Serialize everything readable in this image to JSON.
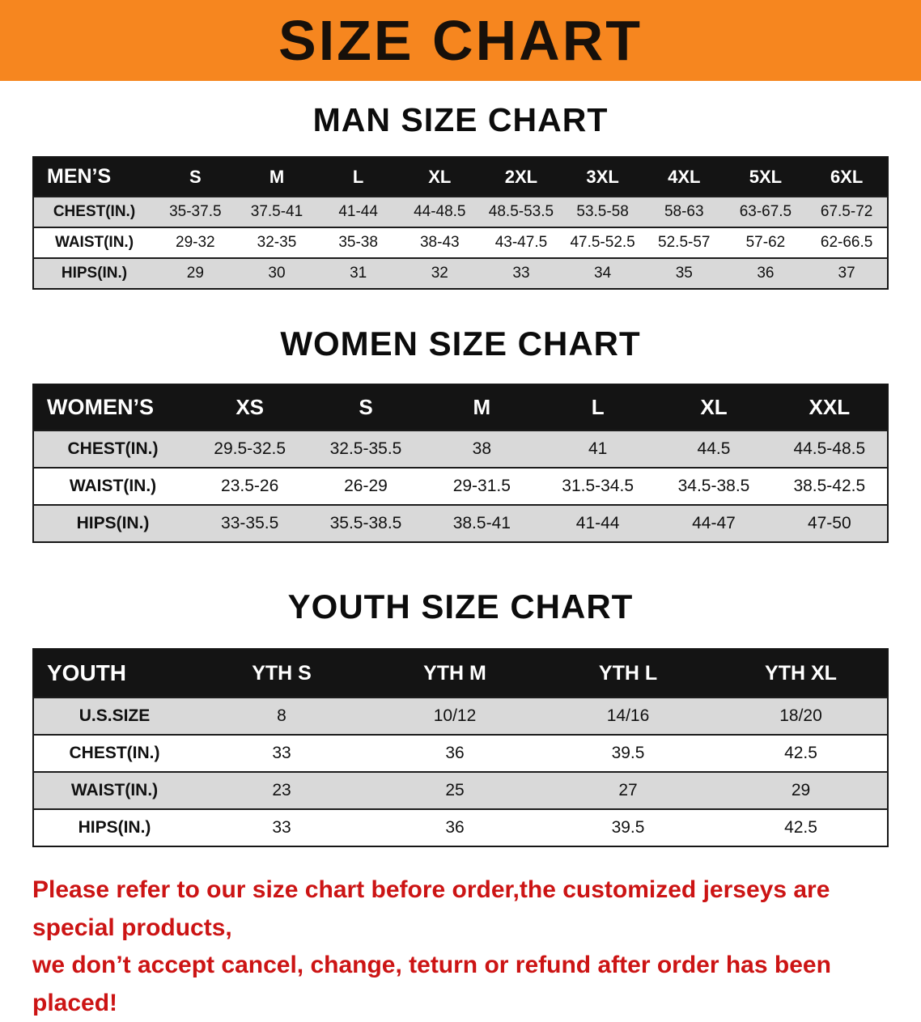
{
  "colors": {
    "banner-bg": "#f6861f",
    "table-header-bg": "#141414",
    "row-alt-bg": "#d9d9d9",
    "disclaimer-color": "#cc1414"
  },
  "banner": {
    "title": "SIZE CHART"
  },
  "sections": [
    {
      "id": "men",
      "title": "MAN SIZE CHART",
      "header": [
        "MEN’S",
        "S",
        "M",
        "L",
        "XL",
        "2XL",
        "3XL",
        "4XL",
        "5XL",
        "6XL"
      ],
      "rows": [
        [
          "CHEST(IN.)",
          "35-37.5",
          "37.5-41",
          "41-44",
          "44-48.5",
          "48.5-53.5",
          "53.5-58",
          "58-63",
          "63-67.5",
          "67.5-72"
        ],
        [
          "WAIST(IN.)",
          "29-32",
          "32-35",
          "35-38",
          "38-43",
          "43-47.5",
          "47.5-52.5",
          "52.5-57",
          "57-62",
          "62-66.5"
        ],
        [
          "HIPS(IN.)",
          "29",
          "30",
          "31",
          "32",
          "33",
          "34",
          "35",
          "36",
          "37"
        ]
      ]
    },
    {
      "id": "women",
      "title": "WOMEN SIZE CHART",
      "header": [
        "WOMEN’S",
        "XS",
        "S",
        "M",
        "L",
        "XL",
        "XXL"
      ],
      "rows": [
        [
          "CHEST(IN.)",
          "29.5-32.5",
          "32.5-35.5",
          "38",
          "41",
          "44.5",
          "44.5-48.5"
        ],
        [
          "WAIST(IN.)",
          "23.5-26",
          "26-29",
          "29-31.5",
          "31.5-34.5",
          "34.5-38.5",
          "38.5-42.5"
        ],
        [
          "HIPS(IN.)",
          "33-35.5",
          "35.5-38.5",
          "38.5-41",
          "41-44",
          "44-47",
          "47-50"
        ]
      ]
    },
    {
      "id": "youth",
      "title": "YOUTH SIZE CHART",
      "header": [
        "YOUTH",
        "YTH S",
        "YTH M",
        "YTH L",
        "YTH XL"
      ],
      "rows": [
        [
          "U.S.SIZE",
          "8",
          "10/12",
          "14/16",
          "18/20"
        ],
        [
          "CHEST(IN.)",
          "33",
          "36",
          "39.5",
          "42.5"
        ],
        [
          "WAIST(IN.)",
          "23",
          "25",
          "27",
          "29"
        ],
        [
          "HIPS(IN.)",
          "33",
          "36",
          "39.5",
          "42.5"
        ]
      ]
    }
  ],
  "disclaimer": {
    "line1": "Please refer to our size chart before order,the customized jerseys are special products,",
    "line2": "we don’t accept cancel, change, teturn or refund after order has been placed!"
  }
}
